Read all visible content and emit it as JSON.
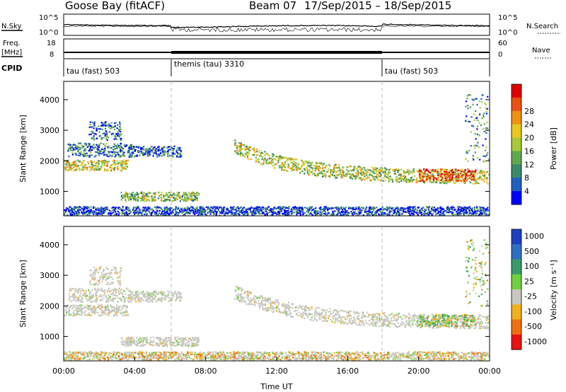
{
  "header": {
    "station": "Goose Bay (fitACF)",
    "beam": "Beam 07",
    "dates": "17/Sep/2015 – 18/Sep/2015"
  },
  "noise_panel": {
    "left_label": "N.Sky",
    "right_label": "N.Search",
    "left_ticks": [
      "10^5",
      "10^0"
    ],
    "right_ticks": [
      "10^5",
      "10^0"
    ]
  },
  "freq_panel": {
    "left_label": "Freq.",
    "left_unit": "[MHz]",
    "right_label": "Nave",
    "left_ticks": [
      "18",
      "8"
    ],
    "right_ticks": [
      "60",
      "0"
    ]
  },
  "cpid": {
    "label": "CPID",
    "segments": [
      {
        "text": "tau (fast) 503",
        "start_h": 0,
        "end_h": 6
      },
      {
        "text": "themis (tau) 3310",
        "start_h": 6,
        "end_h": 18
      },
      {
        "text": "tau (fast) 503",
        "start_h": 18,
        "end_h": 24
      }
    ]
  },
  "chart_data": [
    {
      "type": "heatmap",
      "name": "power-panel",
      "ylabel": "Slant Range [km]",
      "x_range_h": [
        0,
        24
      ],
      "ylim": [
        200,
        4600
      ],
      "y_ticks": [
        1000,
        2000,
        3000,
        4000
      ],
      "colorbar": {
        "label": "Power [dB]",
        "ticks": [
          "4",
          "8",
          "12",
          "16",
          "20",
          "24",
          "28"
        ],
        "colors": [
          "#0000ff",
          "#1f5fbf",
          "#3a8a6a",
          "#5fa850",
          "#a8c83a",
          "#e8c820",
          "#f09010",
          "#e85010",
          "#e00000"
        ]
      },
      "echo_regions": [
        {
          "name": "early-band",
          "start_h": 0.0,
          "end_h": 3.6,
          "r0": 1700,
          "r1": 2050,
          "level": 0.55
        },
        {
          "name": "early-upper",
          "start_h": 0.2,
          "end_h": 3.8,
          "r0": 2150,
          "r1": 2600,
          "level": 0.25
        },
        {
          "name": "early-plume",
          "start_h": 1.4,
          "end_h": 3.2,
          "r0": 2700,
          "r1": 3300,
          "level": 0.2
        },
        {
          "name": "morning-band",
          "start_h": 3.6,
          "end_h": 6.6,
          "r0": 2150,
          "r1": 2500,
          "level": 0.2
        },
        {
          "name": "low-patch",
          "start_h": 3.2,
          "end_h": 7.6,
          "r0": 700,
          "r1": 1000,
          "level": 0.45
        },
        {
          "name": "ground-strip",
          "start_h": 0.0,
          "end_h": 24.0,
          "r0": 250,
          "r1": 520,
          "level": 0.15
        },
        {
          "name": "evening-arc",
          "start_h": 9.6,
          "end_h": 24.0,
          "r0": 1250,
          "r1": 1700,
          "level": 0.5
        },
        {
          "name": "evening-bright",
          "start_h": 20.0,
          "end_h": 23.2,
          "r0": 1350,
          "r1": 1750,
          "level": 0.85
        },
        {
          "name": "late-high",
          "start_h": 22.6,
          "end_h": 24.0,
          "r0": 2000,
          "r1": 4200,
          "level": 0.3
        }
      ]
    },
    {
      "type": "heatmap",
      "name": "velocity-panel",
      "ylabel": "Slant Range [km]",
      "xlabel": "Time UT",
      "x_range_h": [
        0,
        24
      ],
      "x_ticks": [
        "00:00",
        "04:00",
        "08:00",
        "12:00",
        "16:00",
        "20:00",
        "00:00"
      ],
      "ylim": [
        200,
        4600
      ],
      "y_ticks": [
        1000,
        2000,
        3000,
        4000
      ],
      "colorbar": {
        "label": "Velocity [m s⁻¹]",
        "ticks": [
          "1000",
          "500",
          "100",
          "25",
          "-25",
          "-100",
          "-500",
          "-1000"
        ],
        "colors": [
          "#1f3fbf",
          "#2f6fbf",
          "#3a9a6a",
          "#6fd040",
          "#c8c8c0",
          "#f0b020",
          "#f07010",
          "#e81010"
        ]
      }
    }
  ]
}
